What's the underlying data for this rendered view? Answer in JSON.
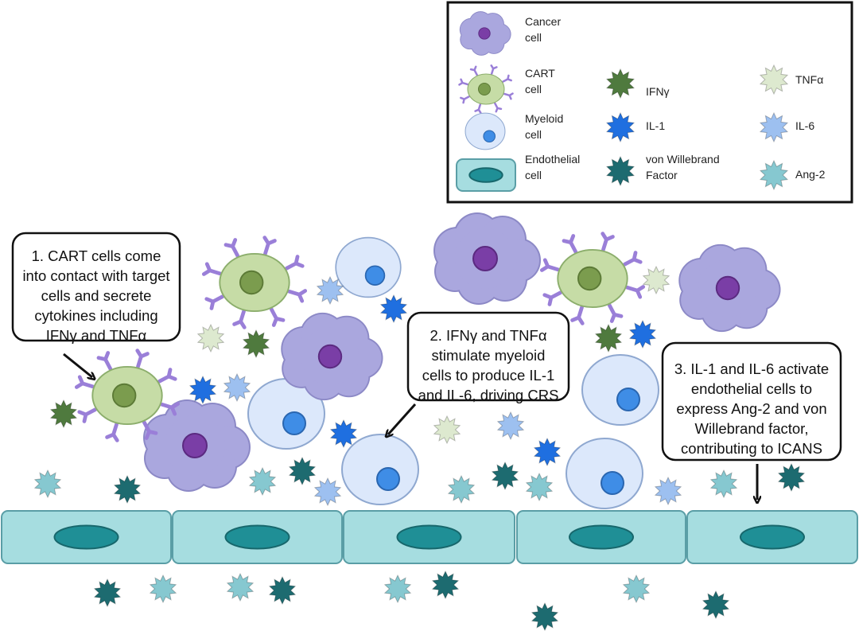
{
  "legend": {
    "items": [
      {
        "label": [
          "Cancer",
          "cell"
        ]
      },
      {
        "label": [
          "CART",
          "cell"
        ]
      },
      {
        "label": [
          "Myeloid",
          "cell"
        ]
      },
      {
        "label": [
          "Endothelial",
          "cell"
        ]
      },
      {
        "label": [
          "IFNγ"
        ]
      },
      {
        "label": [
          "IL-1"
        ]
      },
      {
        "label": [
          "von Willebrand",
          "Factor"
        ]
      },
      {
        "label": [
          "TNFα"
        ]
      },
      {
        "label": [
          "IL-6"
        ]
      },
      {
        "label": [
          "Ang-2"
        ]
      }
    ]
  },
  "callouts": [
    {
      "lines": [
        "1. CART cells come",
        "into contact with target",
        "cells and secrete",
        "cytokines including",
        "IFNγ and TNFα"
      ]
    },
    {
      "lines": [
        "2. IFNγ and TNFα",
        "stimulate myeloid",
        "cells to produce IL-1",
        "and IL-6, driving CRS"
      ]
    },
    {
      "lines": [
        "3. IL-1 and IL-6 activate",
        "endothelial cells to",
        "express Ang-2 and von",
        "Willebrand factor,",
        "contributing to ICANS"
      ]
    }
  ]
}
